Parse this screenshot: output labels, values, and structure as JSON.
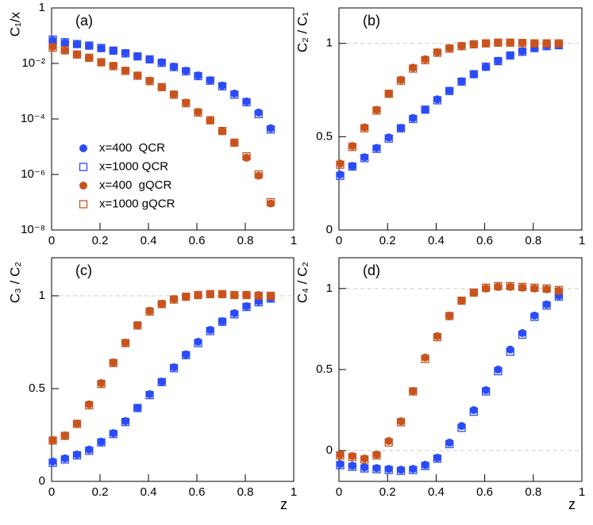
{
  "chart_data": [
    {
      "type": "scatter",
      "title": "(a)",
      "y_label": "C₁/x",
      "log_y": true,
      "x": [
        0.005,
        0.055,
        0.105,
        0.155,
        0.205,
        0.255,
        0.305,
        0.355,
        0.405,
        0.455,
        0.505,
        0.555,
        0.605,
        0.655,
        0.705,
        0.755,
        0.805,
        0.855,
        0.905
      ],
      "xlim": [
        0,
        1
      ],
      "xticks": [
        0,
        0.2,
        0.4,
        0.6,
        0.8,
        1
      ],
      "ylim": [
        1e-08,
        1
      ],
      "yticks": [
        {
          "value": 1e-08,
          "label": "10⁻⁸"
        },
        {
          "value": 1e-06,
          "label": "10⁻⁶"
        },
        {
          "value": 0.0001,
          "label": "10⁻⁴"
        },
        {
          "value": 0.01,
          "label": "10⁻²"
        },
        1
      ],
      "series": [
        {
          "name": "x=400  QCR",
          "color": "#2a4bf5",
          "marker": "circle",
          "values": [
            0.067,
            0.055,
            0.049,
            0.043,
            0.035,
            0.029,
            0.024,
            0.018,
            0.014,
            0.011,
            0.0077,
            0.0055,
            0.0037,
            0.0025,
            0.0016,
            0.00082,
            0.00043,
            0.00017,
            4.6e-05
          ]
        },
        {
          "name": "x=1000 QCR",
          "color": "#2a4bf5",
          "marker": "square",
          "values": [
            0.072,
            0.058,
            0.05,
            0.044,
            0.036,
            0.029,
            0.023,
            0.018,
            0.014,
            0.0105,
            0.0074,
            0.0052,
            0.0035,
            0.0024,
            0.0015,
            0.00075,
            0.0004,
            0.00015,
            4.2e-05
          ]
        },
        {
          "name": "x=400  gQCR",
          "color": "#c8531c",
          "marker": "circle",
          "values": [
            0.04,
            0.029,
            0.021,
            0.016,
            0.011,
            0.0082,
            0.0055,
            0.0037,
            0.0024,
            0.0014,
            0.00077,
            0.00039,
            0.00018,
            8.7e-05,
            3.6e-05,
            1.4e-05,
            4e-06,
            9e-07,
            9e-08
          ]
        },
        {
          "name": "x=1000 gQCR",
          "color": "#c8531c",
          "marker": "square",
          "values": [
            0.037,
            0.03,
            0.021,
            0.016,
            0.011,
            0.008,
            0.0054,
            0.0036,
            0.0023,
            0.0014,
            0.00075,
            0.00037,
            0.00017,
            9e-05,
            3.7e-05,
            1.4e-05,
            4.5e-06,
            1e-06,
            1e-07
          ]
        }
      ]
    },
    {
      "type": "scatter",
      "title": "(b)",
      "y_label": "C₂ / C₁",
      "hlines": [
        1
      ],
      "x": [
        0.005,
        0.055,
        0.105,
        0.155,
        0.205,
        0.255,
        0.305,
        0.355,
        0.405,
        0.455,
        0.505,
        0.555,
        0.605,
        0.655,
        0.705,
        0.755,
        0.805,
        0.855,
        0.905
      ],
      "xlim": [
        0,
        1
      ],
      "xticks": [
        0,
        0.2,
        0.4,
        0.6,
        0.8,
        1
      ],
      "ylim": [
        0,
        1.19
      ],
      "yticks": [
        0,
        0.5,
        1
      ],
      "series": [
        {
          "color": "#2a4bf5",
          "marker": "circle",
          "values": [
            0.297,
            0.343,
            0.39,
            0.44,
            0.496,
            0.547,
            0.6,
            0.644,
            0.7,
            0.746,
            0.797,
            0.835,
            0.873,
            0.907,
            0.936,
            0.958,
            0.975,
            0.987,
            0.99
          ]
        },
        {
          "color": "#2a4bf5",
          "marker": "square",
          "values": [
            0.29,
            0.34,
            0.385,
            0.435,
            0.49,
            0.545,
            0.595,
            0.645,
            0.695,
            0.745,
            0.795,
            0.835,
            0.875,
            0.905,
            0.935,
            0.955,
            0.975,
            0.985,
            0.99
          ]
        },
        {
          "color": "#c8531c",
          "marker": "circle",
          "values": [
            0.356,
            0.45,
            0.55,
            0.644,
            0.73,
            0.805,
            0.87,
            0.915,
            0.953,
            0.975,
            0.987,
            0.996,
            1.0,
            1.004,
            1.004,
            1.004,
            1.0,
            1.0,
            1.0
          ]
        },
        {
          "color": "#c8531c",
          "marker": "square",
          "values": [
            0.35,
            0.445,
            0.545,
            0.64,
            0.73,
            0.8,
            0.865,
            0.91,
            0.95,
            0.972,
            0.985,
            0.995,
            1.0,
            1.004,
            1.004,
            1.002,
            1.0,
            1.0,
            1.0
          ]
        }
      ]
    },
    {
      "type": "scatter",
      "title": "(c)",
      "y_label": "C₃ / C₂",
      "x_label": "z",
      "hlines": [
        1
      ],
      "x": [
        0.005,
        0.055,
        0.105,
        0.155,
        0.205,
        0.255,
        0.305,
        0.355,
        0.405,
        0.455,
        0.505,
        0.555,
        0.605,
        0.655,
        0.705,
        0.755,
        0.805,
        0.855,
        0.905
      ],
      "xlim": [
        0,
        1
      ],
      "xticks": [
        0,
        0.2,
        0.4,
        0.6,
        0.8,
        1
      ],
      "ylim": [
        0,
        1.205
      ],
      "yticks": [
        0,
        0.5,
        1
      ],
      "series": [
        {
          "color": "#2a4bf5",
          "marker": "circle",
          "values": [
            0.107,
            0.124,
            0.145,
            0.171,
            0.214,
            0.26,
            0.325,
            0.397,
            0.47,
            0.538,
            0.615,
            0.684,
            0.752,
            0.816,
            0.863,
            0.906,
            0.944,
            0.97,
            0.987
          ]
        },
        {
          "color": "#2a4bf5",
          "marker": "square",
          "values": [
            0.1,
            0.118,
            0.14,
            0.165,
            0.21,
            0.255,
            0.32,
            0.395,
            0.465,
            0.535,
            0.61,
            0.68,
            0.745,
            0.81,
            0.86,
            0.9,
            0.94,
            0.965,
            0.985
          ]
        },
        {
          "color": "#c8531c",
          "marker": "circle",
          "values": [
            0.222,
            0.248,
            0.312,
            0.415,
            0.53,
            0.641,
            0.748,
            0.842,
            0.919,
            0.957,
            0.983,
            0.996,
            1.004,
            1.009,
            1.009,
            1.004,
            1.004,
            1.004,
            1.0
          ]
        },
        {
          "color": "#c8531c",
          "marker": "square",
          "values": [
            0.22,
            0.245,
            0.31,
            0.41,
            0.525,
            0.638,
            0.745,
            0.84,
            0.915,
            0.955,
            0.98,
            0.995,
            1.004,
            1.009,
            1.009,
            1.004,
            1.004,
            1.0,
            1.0
          ]
        }
      ]
    },
    {
      "type": "scatter",
      "title": "(d)",
      "y_label": "C₄ / C₂",
      "x_label": "z",
      "hlines": [
        0,
        1
      ],
      "x": [
        0.005,
        0.055,
        0.105,
        0.155,
        0.205,
        0.255,
        0.305,
        0.355,
        0.405,
        0.455,
        0.505,
        0.555,
        0.605,
        0.655,
        0.705,
        0.755,
        0.805,
        0.855,
        0.905
      ],
      "xlim": [
        0,
        1
      ],
      "xticks": [
        0,
        0.2,
        0.4,
        0.6,
        0.8,
        1
      ],
      "ylim": [
        -0.19,
        1.19
      ],
      "yticks": [
        0,
        0.5,
        1
      ],
      "series": [
        {
          "color": "#2a4bf5",
          "marker": "circle",
          "values": [
            -0.083,
            -0.093,
            -0.103,
            -0.108,
            -0.113,
            -0.118,
            -0.113,
            -0.088,
            -0.044,
            0.049,
            0.152,
            0.25,
            0.373,
            0.5,
            0.623,
            0.725,
            0.833,
            0.902,
            0.956
          ]
        },
        {
          "color": "#2a4bf5",
          "marker": "square",
          "values": [
            -0.09,
            -0.1,
            -0.11,
            -0.115,
            -0.12,
            -0.125,
            -0.12,
            -0.095,
            -0.05,
            0.04,
            0.14,
            0.24,
            0.365,
            0.49,
            0.61,
            0.715,
            0.825,
            0.895,
            0.95
          ]
        },
        {
          "color": "#c8531c",
          "marker": "circle",
          "values": [
            -0.025,
            -0.034,
            -0.049,
            -0.025,
            0.059,
            0.181,
            0.368,
            0.574,
            0.706,
            0.833,
            0.926,
            0.975,
            1.0,
            1.01,
            1.01,
            1.005,
            1.0,
            0.995,
            0.985
          ]
        },
        {
          "color": "#c8531c",
          "marker": "square",
          "values": [
            -0.03,
            -0.04,
            -0.055,
            -0.03,
            0.05,
            0.175,
            0.365,
            0.565,
            0.7,
            0.83,
            0.925,
            0.975,
            1.005,
            1.015,
            1.015,
            1.01,
            1.005,
            1.0,
            0.99
          ]
        }
      ]
    }
  ]
}
